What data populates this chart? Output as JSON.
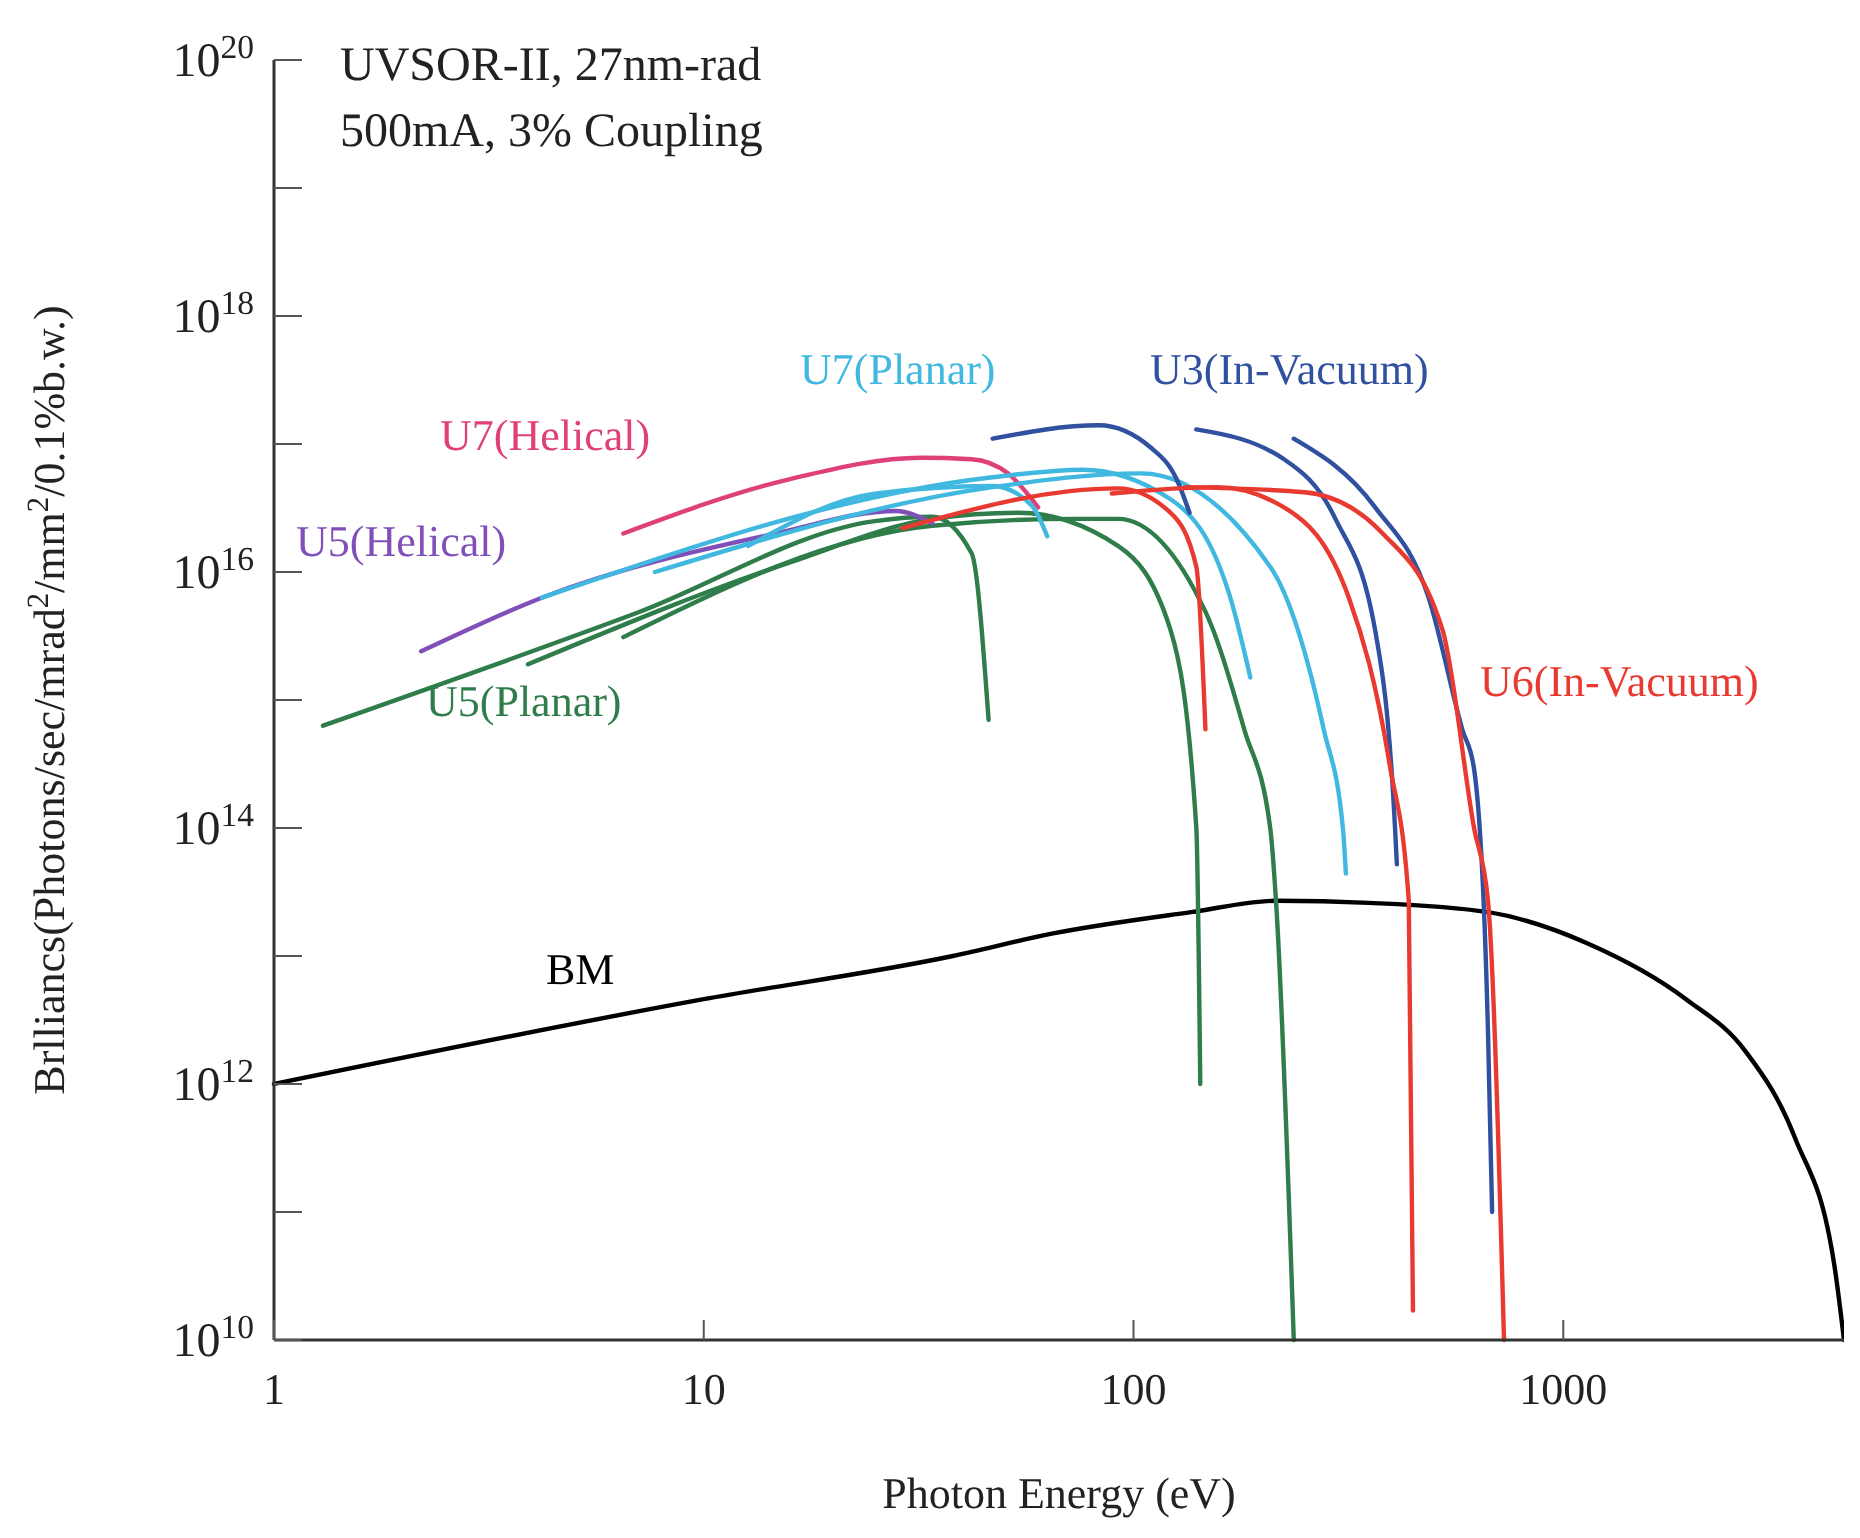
{
  "chart_data": {
    "type": "line",
    "xlabel": "Photon Energy (eV)",
    "ylabel": "Brlliancs(Photons/sec/mrad$^{2}$/mm$^{2}$/0.1%b.w.)",
    "annotations": [
      "UVSOR-II, 27nm-rad",
      "500mA, 3% Coupling"
    ],
    "log": "xy",
    "xlim": [
      1,
      4500
    ],
    "xticks": [
      1,
      10,
      100,
      1000
    ],
    "ylim": [
      10000000000.0,
      1e+20
    ],
    "yticks": [
      {
        "value": 10000000000.0,
        "label": "10$^{10}$"
      },
      {
        "value": 100000000000.0,
        "label": null
      },
      {
        "value": 1000000000000.0,
        "label": "10$^{12}$"
      },
      {
        "value": 10000000000000.0,
        "label": null
      },
      {
        "value": 100000000000000.0,
        "label": "10$^{14}$"
      },
      {
        "value": 1000000000000000.0,
        "label": null
      },
      {
        "value": 1e+16,
        "label": "10$^{16}$"
      },
      {
        "value": 1e+17,
        "label": null
      },
      {
        "value": 1e+18,
        "label": "10$^{18}$"
      },
      {
        "value": 1e+19,
        "label": null
      },
      {
        "value": 1e+20,
        "label": "10$^{20}$"
      }
    ],
    "series": [
      {
        "name": "BM",
        "color": "#000000",
        "x": [
          1,
          10,
          38,
          65,
          136,
          215,
          353,
          668,
          1136,
          1930,
          2655,
          3460,
          4280,
          4500
        ],
        "values": [
          1000000000000.0,
          4600000000000.0,
          10000000000000.0,
          15000000000000.0,
          22000000000000.0,
          27000000000000.0,
          26000000000000.0,
          22000000000000.0,
          12600000000000.0,
          4600000000000.0,
          1800000000000.0,
          380000000000.0,
          37000000000.0,
          10000000000.0
        ]
      },
      {
        "name": "U5(Planar)",
        "color": "#2e7d4a",
        "x": [
          1.3,
          7,
          25,
          34,
          42,
          46
        ],
        "values": [
          630000000000000.0,
          4800000000000000.0,
          2.5e+16,
          2.7e+16,
          1.4e+16,
          700000000000000.0
        ]
      },
      {
        "color": "#2e7d4a",
        "x": [
          3.9,
          16,
          34,
          54,
          92,
          122,
          140,
          143
        ],
        "values": [
          1900000000000000.0,
          1.2e+16,
          2.6e+16,
          2.9e+16,
          1.6e+16,
          3500000000000000.0,
          100000000000000.0,
          1000000000000.0
        ]
      },
      {
        "color": "#2e7d4a",
        "x": [
          6.5,
          34,
          72,
          92,
          147,
          181,
          208,
          215,
          236
        ],
        "values": [
          3100000000000000.0,
          2.3e+16,
          2.6e+16,
          2.6e+16,
          4900000000000000.0,
          590000000000000.0,
          100000000000000.0,
          24000000000000.0,
          10000000000.0
        ]
      },
      {
        "name": "U5(Helical)",
        "color": "#8050b8",
        "x": [
          2.2,
          4.2,
          14.7,
          28,
          34
        ],
        "values": [
          2400000000000000.0,
          6300000000000000.0,
          2e+16,
          3e+16,
          2.4e+16
        ]
      },
      {
        "name": "U7(Helical)",
        "color": "#e0407a",
        "x": [
          6.5,
          15.8,
          32,
          42,
          51,
          60
        ],
        "values": [
          2e+16,
          5.3e+16,
          7.8e+16,
          7.6e+16,
          5.9e+16,
          3.2e+16
        ]
      },
      {
        "color": "#40b8e0",
        "x": [
          12.7,
          25,
          47,
          58,
          63
        ],
        "values": [
          1.6e+16,
          4.1e+16,
          4.7e+16,
          3.3e+16,
          1.9e+16
        ]
      },
      {
        "name": "U7(Planar)",
        "color": "#40b8e0",
        "x": [
          4.2,
          47,
          76,
          122,
          168,
          187
        ],
        "values": [
          6300000000000000.0,
          5.5e+16,
          6.3e+16,
          3.7e+16,
          6300000000000000.0,
          1500000000000000.0
        ]
      },
      {
        "color": "#40b8e0",
        "x": [
          7.7,
          47,
          104,
          208,
          277,
          307,
          312
        ],
        "values": [
          1e+16,
          4.6e+16,
          5.9e+16,
          1.1e+16,
          590000000000000.0,
          100000000000000.0,
          44000000000000.0
        ]
      },
      {
        "name": "U3(In-Vacuum)",
        "color": "#3050a0",
        "x": [
          47,
          83,
          110,
          126,
          135
        ],
        "values": [
          1.1e+17,
          1.4e+17,
          9.3e+16,
          5.3e+16,
          2.9e+16
        ]
      },
      {
        "color": "#3050a0",
        "x": [
          140,
          224,
          295,
          365,
          406,
          410
        ],
        "values": [
          1.3e+17,
          7.6e+16,
          2.6e+16,
          3500000000000000.0,
          100000000000000.0,
          52000000000000.0
        ]
      },
      {
        "color": "#3050a0",
        "x": [
          236,
          365,
          486,
          582,
          620,
          668,
          683
        ],
        "values": [
          1.1e+17,
          3.2e+16,
          6300000000000000.0,
          590000000000000.0,
          290000000000000.0,
          2600000000000.0,
          100000000000.0
        ]
      },
      {
        "color": "#e83a30",
        "x": [
          29,
          92,
          122,
          140,
          147
        ],
        "values": [
          2.2e+16,
          4.5e+16,
          2.9e+16,
          1.1e+16,
          590000000000000.0
        ]
      },
      {
        "color": "#e83a30",
        "x": [
          89,
          156,
          224,
          317,
          394,
          437,
          447
        ],
        "values": [
          4.1e+16,
          4.6e+16,
          3.2e+16,
          6300000000000000.0,
          320000000000000.0,
          27000000000000.0,
          17000000000.0
        ]
      },
      {
        "name": "U6(In-Vacuum)",
        "color": "#e83a30",
        "x": [
          132,
          250,
          380,
          524,
          620,
          668,
          728
        ],
        "values": [
          4.6e+16,
          4.2e+16,
          2e+16,
          3500000000000000.0,
          100000000000000.0,
          27000000000000.0,
          10000000000.0
        ]
      }
    ]
  }
}
